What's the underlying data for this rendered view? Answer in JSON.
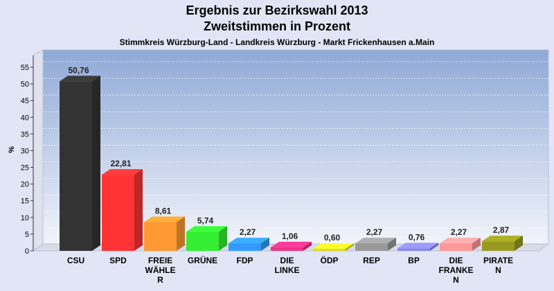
{
  "chart_data": {
    "type": "bar",
    "title": "Ergebnis zur Bezirkswahl 2013",
    "title_line2": "Zweitstimmen in Prozent",
    "subtitle": "Stimmkreis Würzburg-Land - Landkreis Würzburg - Markt Frickenhausen a.Main",
    "ylabel": "%",
    "xlabel": "",
    "ylim": [
      0,
      55
    ],
    "yticks": [
      0,
      5,
      10,
      15,
      20,
      25,
      30,
      35,
      40,
      45,
      50,
      55
    ],
    "grid": true,
    "categories": [
      "CSU",
      "SPD",
      "FREIE WÄHLER",
      "GRÜNE",
      "FDP",
      "DIE LINKE",
      "ÖDP",
      "REP",
      "BP",
      "DIE FRANKEN",
      "PIRATEN"
    ],
    "category_label_lines": [
      [
        "CSU"
      ],
      [
        "SPD"
      ],
      [
        "FREIE",
        "WÄHLE",
        "R"
      ],
      [
        "GRÜNE"
      ],
      [
        "FDP"
      ],
      [
        "DIE",
        "LINKE"
      ],
      [
        "ÖDP"
      ],
      [
        "REP"
      ],
      [
        "BP"
      ],
      [
        "DIE",
        "FRANKE",
        "N"
      ],
      [
        "PIRATE",
        "N"
      ]
    ],
    "values": [
      50.76,
      22.81,
      8.61,
      5.74,
      2.27,
      1.06,
      0.6,
      2.27,
      0.76,
      2.27,
      2.87
    ],
    "value_labels": [
      "50,76",
      "22,81",
      "8,61",
      "5,74",
      "2,27",
      "1,06",
      "0,60",
      "2,27",
      "0,76",
      "2,27",
      "2,87"
    ],
    "colors": [
      "#333333",
      "#ff3333",
      "#ff9933",
      "#33ee33",
      "#3399ff",
      "#ee3388",
      "#dddd22",
      "#999999",
      "#8888ee",
      "#ff9999",
      "#999922"
    ]
  }
}
